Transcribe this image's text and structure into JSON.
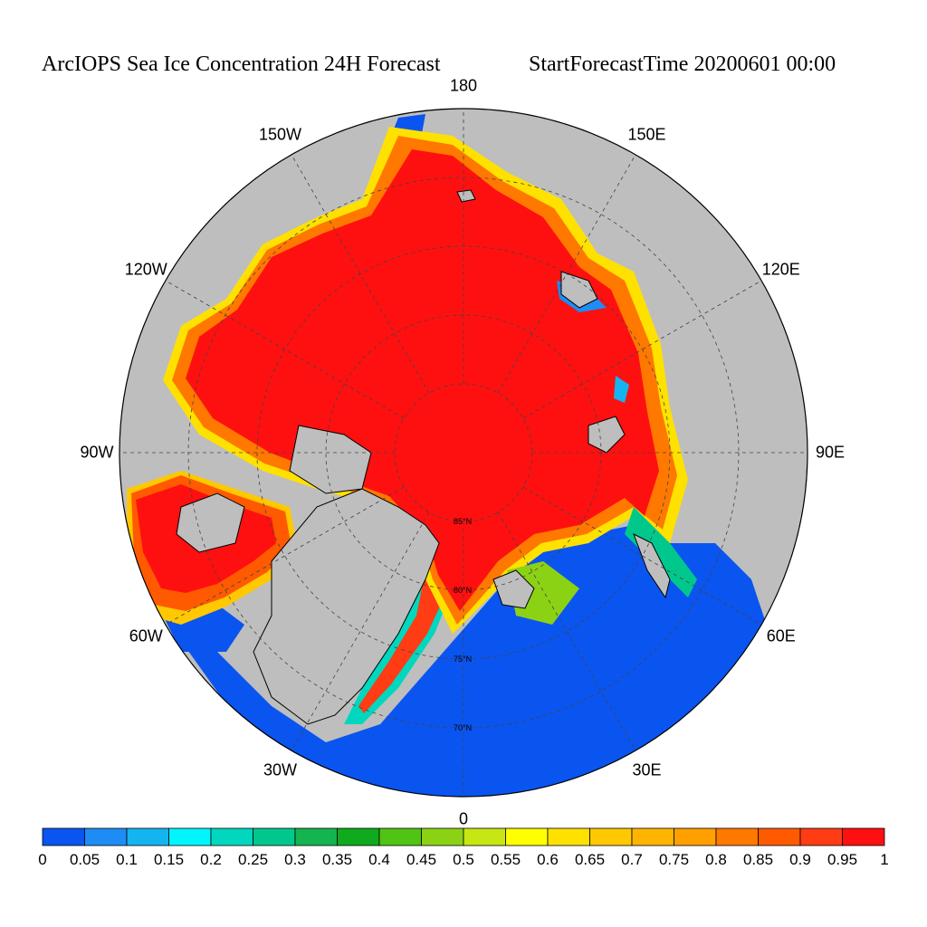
{
  "title": {
    "left": "ArcIOPS Sea Ice Concentration 24H Forecast",
    "right": "StartForecastTime 20200601 00:00"
  },
  "map": {
    "projection": "north-polar-stereographic",
    "longitude_labels": [
      {
        "id": "lon-180",
        "text": "180"
      },
      {
        "id": "lon-150e",
        "text": "150E"
      },
      {
        "id": "lon-120e",
        "text": "120E"
      },
      {
        "id": "lon-90e",
        "text": "90E"
      },
      {
        "id": "lon-60e",
        "text": "60E"
      },
      {
        "id": "lon-30e",
        "text": "30E"
      },
      {
        "id": "lon-0",
        "text": "0"
      },
      {
        "id": "lon-30w",
        "text": "30W"
      },
      {
        "id": "lon-60w",
        "text": "60W"
      },
      {
        "id": "lon-90w",
        "text": "90W"
      },
      {
        "id": "lon-120w",
        "text": "120W"
      },
      {
        "id": "lon-150w",
        "text": "150W"
      }
    ],
    "latitude_labels": [
      "85°N",
      "80°N",
      "75°N",
      "70°N"
    ],
    "colors": {
      "land": "#bebebe",
      "open_water": "#0a55f0",
      "full_ice": "#ff1010",
      "gridline": "#444444"
    }
  },
  "colorbar": {
    "ticks": [
      "0",
      "0.05",
      "0.1",
      "0.15",
      "0.2",
      "0.25",
      "0.3",
      "0.35",
      "0.4",
      "0.45",
      "0.5",
      "0.55",
      "0.6",
      "0.65",
      "0.7",
      "0.75",
      "0.8",
      "0.85",
      "0.9",
      "0.95",
      "1"
    ],
    "colors": [
      "#0a55f0",
      "#1e8cf5",
      "#14b4f0",
      "#00f5ff",
      "#00d7be",
      "#00c88c",
      "#14b450",
      "#0faa1e",
      "#50c314",
      "#8cd214",
      "#c8e614",
      "#ffff00",
      "#ffe100",
      "#ffc800",
      "#ffb400",
      "#ffa000",
      "#ff7800",
      "#ff5a00",
      "#ff3c14",
      "#ff1010"
    ]
  }
}
